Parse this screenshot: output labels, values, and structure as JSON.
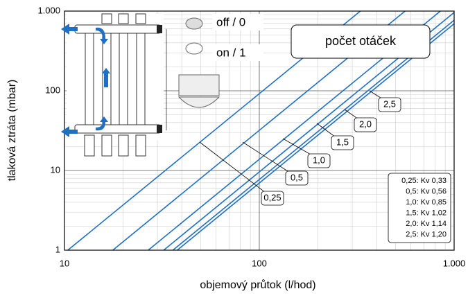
{
  "chart_data": {
    "type": "line",
    "x_label": "objemový průtok (l/hod)",
    "y_label": "tlaková ztráta (mbar)",
    "x_scale": "log",
    "y_scale": "log",
    "grid": true,
    "minor_grid": true,
    "xlim": [
      10,
      1000
    ],
    "ylim": [
      1,
      1000
    ],
    "xticks": [
      10,
      100,
      {
        "value": 1000,
        "label": "1.000"
      }
    ],
    "yticks": [
      1,
      10,
      100,
      {
        "value": 1000,
        "label": "1.000"
      }
    ],
    "series": [
      {
        "name": "0,25",
        "color": "#1f6fc5",
        "x": [
          10.4,
          330
        ],
        "y": [
          1,
          1000
        ]
      },
      {
        "name": "0,5",
        "color": "#1f6fc5",
        "x": [
          17.7,
          560
        ],
        "y": [
          1,
          1000
        ]
      },
      {
        "name": "1,0",
        "color": "#1f6fc5",
        "x": [
          26.9,
          850
        ],
        "y": [
          1,
          1000
        ]
      },
      {
        "name": "1,5",
        "color": "#1f6fc5",
        "x": [
          32.3,
          1000
        ],
        "y": [
          1,
          961
        ]
      },
      {
        "name": "2,0",
        "color": "#1f6fc5",
        "x": [
          36.0,
          1000
        ],
        "y": [
          1,
          769
        ]
      },
      {
        "name": "2,5",
        "color": "#1f6fc5",
        "x": [
          37.9,
          1000
        ],
        "y": [
          1,
          694
        ]
      }
    ],
    "annotations": {
      "title_box": "počet otáček",
      "off": "off / 0",
      "on": "on / 1"
    },
    "kv_table": [
      "0,25: Kv 0,33",
      "0,5: Kv 0,56",
      "1,0: Kv 0,85",
      "1,5: Kv 1,02",
      "2,0: Kv 1,14",
      "2,5: Kv 1,20"
    ]
  }
}
